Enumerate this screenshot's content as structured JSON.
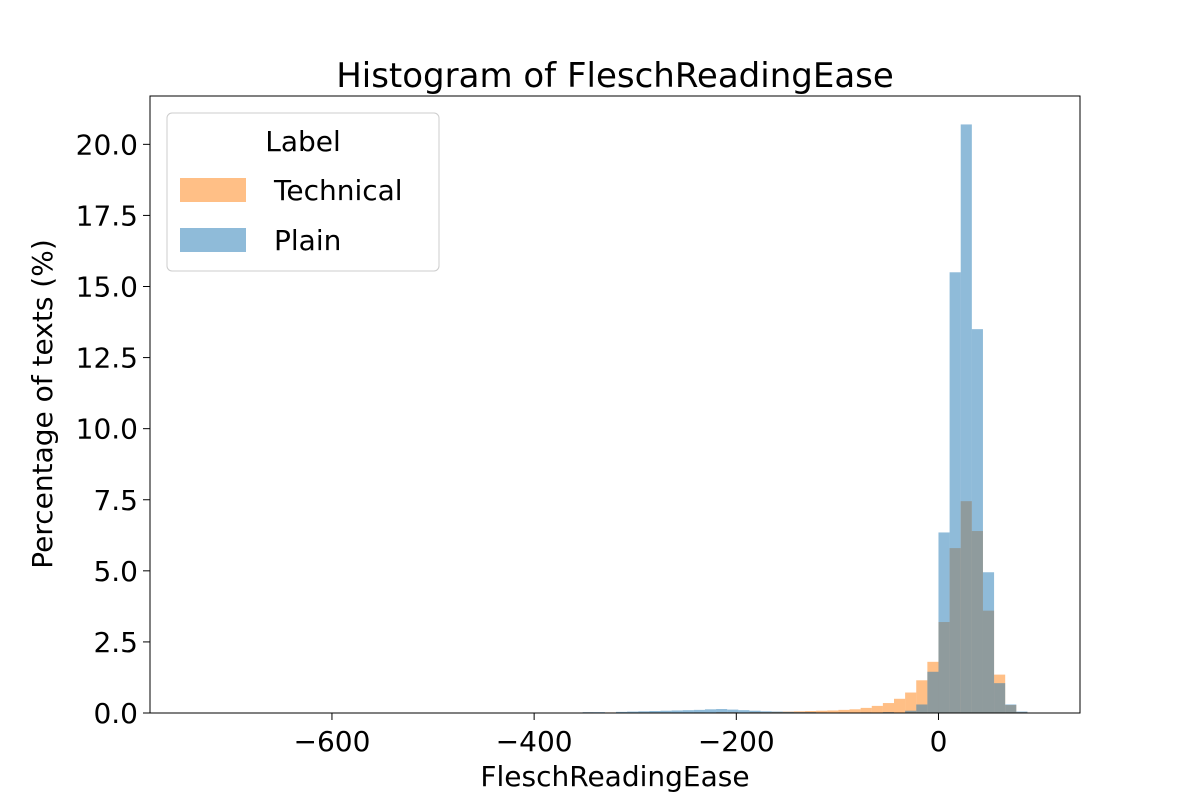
{
  "chart_data": {
    "type": "bar",
    "title": "Histogram of FleschReadingEase",
    "xlabel": "FleschReadingEase",
    "ylabel": "Percentage of texts (%)",
    "xlim": [
      -780,
      140
    ],
    "ylim": [
      0,
      21.7
    ],
    "xticks": [
      -600,
      -400,
      -200,
      0
    ],
    "xtick_labels": [
      "−600",
      "−400",
      "−200",
      "0"
    ],
    "yticks": [
      0,
      2.5,
      5,
      7.5,
      10,
      12.5,
      15,
      17.5,
      20
    ],
    "ytick_labels": [
      "0.0",
      "2.5",
      "5.0",
      "7.5",
      "10.0",
      "12.5",
      "15.0",
      "17.5",
      "20.0"
    ],
    "grid": false,
    "legend": {
      "title": "Label",
      "placement": "top-left"
    },
    "bin_width": 11,
    "series": [
      {
        "name": "Technical",
        "color": "#ffbe86",
        "bins": [
          [
            -352,
            -341,
            0.02
          ],
          [
            -330,
            -319,
            0.02
          ],
          [
            -297,
            -286,
            0.02
          ],
          [
            -286,
            -275,
            0.02
          ],
          [
            -275,
            -264,
            0.02
          ],
          [
            -242,
            -231,
            0.02
          ],
          [
            -220,
            -209,
            0.03
          ],
          [
            -209,
            -198,
            0.03
          ],
          [
            -187,
            -176,
            0.03
          ],
          [
            -176,
            -165,
            0.03
          ],
          [
            -165,
            -154,
            0.04
          ],
          [
            -154,
            -143,
            0.05
          ],
          [
            -143,
            -132,
            0.06
          ],
          [
            -132,
            -121,
            0.07
          ],
          [
            -121,
            -110,
            0.08
          ],
          [
            -110,
            -99,
            0.09
          ],
          [
            -99,
            -88,
            0.11
          ],
          [
            -88,
            -77,
            0.13
          ],
          [
            -77,
            -66,
            0.18
          ],
          [
            -66,
            -55,
            0.25
          ],
          [
            -55,
            -44,
            0.35
          ],
          [
            -44,
            -33,
            0.5
          ],
          [
            -33,
            -22,
            0.72
          ],
          [
            -22,
            -11,
            1.15
          ],
          [
            -11,
            0,
            1.8
          ],
          [
            0,
            11,
            3.2
          ],
          [
            11,
            22,
            5.8
          ],
          [
            22,
            33,
            7.45
          ],
          [
            33,
            44,
            6.4
          ],
          [
            44,
            55,
            3.6
          ],
          [
            55,
            66,
            1.35
          ],
          [
            66,
            77,
            0.28
          ],
          [
            77,
            88,
            0.03
          ]
        ]
      },
      {
        "name": "Plain",
        "color": "#8fbbd9",
        "bins": [
          [
            -352,
            -341,
            0.03
          ],
          [
            -341,
            -330,
            0.03
          ],
          [
            -319,
            -308,
            0.04
          ],
          [
            -308,
            -297,
            0.05
          ],
          [
            -297,
            -286,
            0.06
          ],
          [
            -286,
            -275,
            0.07
          ],
          [
            -275,
            -264,
            0.08
          ],
          [
            -264,
            -253,
            0.09
          ],
          [
            -253,
            -242,
            0.1
          ],
          [
            -242,
            -231,
            0.11
          ],
          [
            -231,
            -220,
            0.13
          ],
          [
            -220,
            -209,
            0.14
          ],
          [
            -209,
            -198,
            0.12
          ],
          [
            -198,
            -187,
            0.1
          ],
          [
            -187,
            -176,
            0.08
          ],
          [
            -176,
            -165,
            0.06
          ],
          [
            -165,
            -154,
            0.05
          ],
          [
            -154,
            -143,
            0.04
          ],
          [
            -143,
            -132,
            0.03
          ],
          [
            -132,
            -121,
            0.03
          ],
          [
            -121,
            -110,
            0.02
          ],
          [
            -99,
            -88,
            0.02
          ],
          [
            -77,
            -66,
            0.02
          ],
          [
            -55,
            -44,
            0.03
          ],
          [
            -33,
            -22,
            0.08
          ],
          [
            -22,
            -11,
            0.3
          ],
          [
            -11,
            0,
            1.45
          ],
          [
            0,
            11,
            6.35
          ],
          [
            11,
            22,
            15.5
          ],
          [
            22,
            33,
            20.7
          ],
          [
            33,
            44,
            13.5
          ],
          [
            44,
            55,
            4.95
          ],
          [
            55,
            66,
            1.05
          ],
          [
            66,
            77,
            0.3
          ],
          [
            77,
            88,
            0.05
          ]
        ]
      }
    ]
  }
}
